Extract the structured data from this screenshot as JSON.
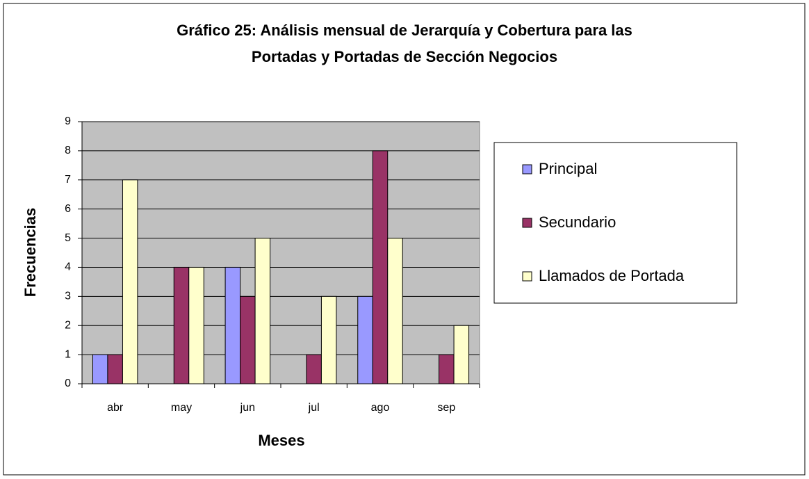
{
  "chart_data": {
    "type": "bar",
    "title": [
      "Gráfico 25: Análisis mensual de Jerarquía y Cobertura para las",
      "Portadas y Portadas de Sección Negocios"
    ],
    "x_label": "Meses",
    "y_label": "Frecuencias",
    "categories": [
      "abr",
      "may",
      "jun",
      "jul",
      "ago",
      "sep"
    ],
    "series": [
      {
        "name": "Principal",
        "color": "#9999ff",
        "values": [
          1,
          0,
          4,
          0,
          3,
          0
        ]
      },
      {
        "name": "Secundario",
        "color": "#993366",
        "values": [
          1,
          4,
          3,
          1,
          8,
          1
        ]
      },
      {
        "name": "Llamados de Portada",
        "color": "#ffffcc",
        "values": [
          7,
          4,
          5,
          3,
          5,
          2
        ]
      }
    ],
    "ylim": [
      0,
      9
    ],
    "yticks": [
      0,
      1,
      2,
      3,
      4,
      5,
      6,
      7,
      8,
      9
    ],
    "grid": true,
    "legend": "right"
  }
}
